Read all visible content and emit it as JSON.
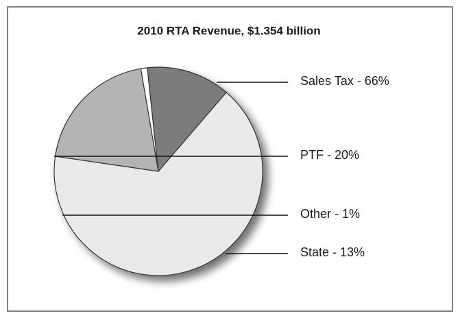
{
  "chart_data": {
    "type": "pie",
    "title": "2010 RTA Revenue, $1.354 billion",
    "categories": [
      "Sales Tax - 66%",
      "PTF - 20%",
      "Other - 1%",
      "State - 13%"
    ],
    "values": [
      66,
      20,
      1,
      13
    ],
    "colors": [
      "#e9e9ea",
      "#b2b4b6",
      "#ffffff",
      "#7b7c7e"
    ]
  }
}
